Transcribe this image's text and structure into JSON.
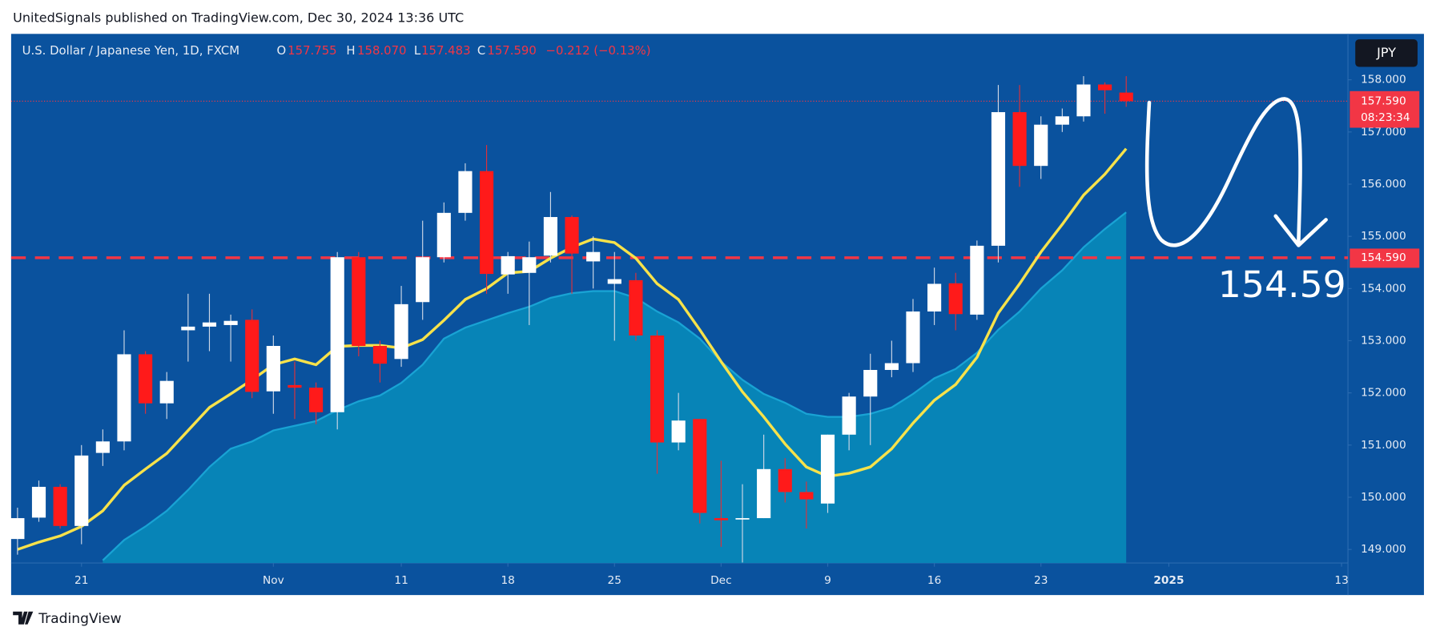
{
  "header": {
    "text": "UnitedSignals published on TradingView.com, Dec 30, 2024 13:36 UTC"
  },
  "footer": {
    "brand": "TradingView"
  },
  "chart_data": {
    "type": "candlestick",
    "legend": {
      "symbol": "U.S. Dollar / Japanese Yen, 1D, FXCM",
      "open_label": "O",
      "open": "157.755",
      "high_label": "H",
      "high": "158.070",
      "low_label": "L",
      "low": "157.483",
      "close_label": "C",
      "close": "157.590",
      "change": "−0.212 (−0.13%)"
    },
    "currency": "JPY",
    "up_color": "#ffffff",
    "down_color": "#ff1a1a",
    "open": [
      149.2,
      149.61,
      150.2,
      149.45,
      150.85,
      151.07,
      152.74,
      151.8,
      153.2,
      153.27,
      153.3,
      153.4,
      152.03,
      152.15,
      152.1,
      151.63,
      154.6,
      152.9,
      152.65,
      153.74,
      154.6,
      155.45,
      156.25,
      154.27,
      154.3,
      154.63,
      155.37,
      154.52,
      154.09,
      154.16,
      153.1,
      151.05,
      151.5,
      149.6,
      149.58,
      149.6,
      150.54,
      150.1,
      149.88,
      151.2,
      151.93,
      152.44,
      152.57,
      153.56,
      154.1,
      153.5,
      154.82,
      157.38,
      156.35,
      157.14,
      157.3,
      157.91,
      157.755
    ],
    "high": [
      149.8,
      150.32,
      150.25,
      151.0,
      151.3,
      153.2,
      152.8,
      152.4,
      153.9,
      153.9,
      153.5,
      153.6,
      153.1,
      152.6,
      152.2,
      154.7,
      154.7,
      153.0,
      154.05,
      155.3,
      155.65,
      156.4,
      156.75,
      154.7,
      154.9,
      155.85,
      155.4,
      155.0,
      154.7,
      154.3,
      153.2,
      152.0,
      151.5,
      150.7,
      150.25,
      151.2,
      150.75,
      150.3,
      151.2,
      152.0,
      152.75,
      153.0,
      153.8,
      154.4,
      154.3,
      154.92,
      157.9,
      157.9,
      157.3,
      157.45,
      158.07,
      157.95,
      158.07
    ],
    "low": [
      148.9,
      149.53,
      149.4,
      149.1,
      150.6,
      150.9,
      151.6,
      151.5,
      152.6,
      152.8,
      152.6,
      151.9,
      151.6,
      151.5,
      151.4,
      151.3,
      152.7,
      152.2,
      152.5,
      153.4,
      154.5,
      155.3,
      153.9,
      153.9,
      153.3,
      154.5,
      153.9,
      154.0,
      153.0,
      153.0,
      150.45,
      150.9,
      149.5,
      149.05,
      148.75,
      149.6,
      149.9,
      149.4,
      149.7,
      150.9,
      151.0,
      152.3,
      152.4,
      153.3,
      153.2,
      153.4,
      154.5,
      155.95,
      156.1,
      157.0,
      157.2,
      157.35,
      157.483
    ],
    "close": [
      149.6,
      150.2,
      149.45,
      150.8,
      151.07,
      152.74,
      151.8,
      152.23,
      153.27,
      153.35,
      153.38,
      152.02,
      152.9,
      152.1,
      151.63,
      154.6,
      152.9,
      152.56,
      153.7,
      154.6,
      155.45,
      156.25,
      154.28,
      154.62,
      154.6,
      155.37,
      154.67,
      154.7,
      154.18,
      153.1,
      151.05,
      151.47,
      149.7,
      149.56,
      149.6,
      150.54,
      150.1,
      149.96,
      151.2,
      151.93,
      152.44,
      152.57,
      153.56,
      154.09,
      153.51,
      154.82,
      157.38,
      156.35,
      157.14,
      157.3,
      157.91,
      157.8,
      157.59
    ],
    "ma_short": {
      "color": "#f7e24a",
      "values": [
        149.0,
        149.14,
        149.26,
        149.44,
        149.74,
        150.23,
        150.54,
        150.84,
        151.28,
        151.72,
        151.98,
        152.25,
        152.54,
        152.65,
        152.54,
        152.89,
        152.91,
        152.91,
        152.86,
        153.02,
        153.39,
        153.79,
        154.0,
        154.3,
        154.33,
        154.58,
        154.79,
        154.95,
        154.88,
        154.58,
        154.09,
        153.79,
        153.21,
        152.6,
        152.02,
        151.54,
        151.02,
        150.58,
        150.4,
        150.46,
        150.58,
        150.93,
        151.42,
        151.86,
        152.16,
        152.68,
        153.53,
        154.09,
        154.7,
        155.23,
        155.79,
        156.19,
        156.68
      ]
    },
    "ma_long": {
      "color": "#0787b8",
      "values": [
        null,
        null,
        null,
        null,
        148.79,
        149.18,
        149.44,
        149.74,
        150.14,
        150.58,
        150.93,
        151.07,
        151.28,
        151.37,
        151.46,
        151.67,
        151.84,
        151.95,
        152.19,
        152.54,
        153.04,
        153.25,
        153.39,
        153.53,
        153.65,
        153.82,
        153.91,
        153.95,
        153.95,
        153.82,
        153.56,
        153.35,
        153.04,
        152.6,
        152.25,
        151.98,
        151.81,
        151.6,
        151.54,
        151.54,
        151.6,
        151.72,
        151.98,
        152.28,
        152.46,
        152.77,
        153.21,
        153.56,
        154.0,
        154.35,
        154.79,
        155.14,
        155.46
      ]
    },
    "current_price": {
      "value": 157.59,
      "label": "157.590",
      "countdown": "08:23:34"
    },
    "level": {
      "value": 154.59,
      "label": "154.590",
      "annotation": "154.59",
      "color": "#f23645"
    },
    "xlim": [
      -0.3,
      62.4
    ],
    "xticks": [
      {
        "value": 3,
        "label": "21"
      },
      {
        "value": 12,
        "label": "Nov"
      },
      {
        "value": 18,
        "label": "11"
      },
      {
        "value": 23,
        "label": "18"
      },
      {
        "value": 28,
        "label": "25"
      },
      {
        "value": 33,
        "label": "Dec"
      },
      {
        "value": 38,
        "label": "9"
      },
      {
        "value": 43,
        "label": "16"
      },
      {
        "value": 48,
        "label": "23"
      },
      {
        "value": 54,
        "label": "2025"
      },
      {
        "value": 62.1,
        "label": "13"
      }
    ],
    "ylim": [
      148.74,
      158.88
    ],
    "yticks": [
      {
        "value": 149,
        "label": "149.000"
      },
      {
        "value": 150,
        "label": "150.000"
      },
      {
        "value": 151,
        "label": "151.000"
      },
      {
        "value": 152,
        "label": "152.000"
      },
      {
        "value": 153,
        "label": "153.000"
      },
      {
        "value": 154,
        "label": "154.000"
      },
      {
        "value": 155,
        "label": "155.000"
      },
      {
        "value": 156,
        "label": "156.000"
      },
      {
        "value": 157,
        "label": "157.000"
      },
      {
        "value": 158,
        "label": "158.000"
      }
    ],
    "grid": false
  }
}
